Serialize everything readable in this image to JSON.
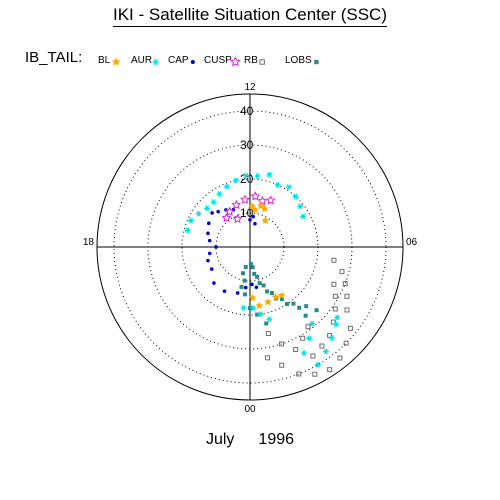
{
  "header": {
    "title": "IKI - Satellite Situation Center (SSC)",
    "legend_label": "IB_TAIL:"
  },
  "footer": {
    "month": "July",
    "year": "1996"
  },
  "chart_data": {
    "type": "scatter",
    "subtype": "polar",
    "title": "IKI - Satellite Situation Center (SSC)",
    "angular_axis": {
      "unit": "MLT hours",
      "tick_labels": [
        "12",
        "18",
        "00",
        "06"
      ]
    },
    "radial_axis": {
      "ticks": [
        "10",
        "20",
        "30",
        "40"
      ],
      "range": [
        0,
        45
      ]
    },
    "legend": [
      {
        "name": "BL",
        "marker": "star",
        "color": "#ffaa00"
      },
      {
        "name": "AUR",
        "marker": "asterisk",
        "color": "#00e0e0"
      },
      {
        "name": "CAP",
        "marker": "dot",
        "color": "#0000cc"
      },
      {
        "name": "CUSP",
        "marker": "star-outline",
        "color": "#e020e0"
      },
      {
        "name": "RB",
        "marker": "square-outline",
        "color": "#707070"
      },
      {
        "name": "LOBS",
        "marker": "square",
        "color": "#2a8a8a"
      }
    ],
    "series": [
      {
        "name": "BL",
        "points": [
          [
            0.6,
            17.5
          ],
          [
            1.2,
            17
          ],
          [
            1.8,
            16.5
          ],
          [
            2.2,
            17
          ],
          [
            0.2,
            15
          ],
          [
            10.6,
            12
          ],
          [
            11.0,
            12.5
          ],
          [
            11.5,
            11
          ],
          [
            11.8,
            12
          ],
          [
            10.0,
            9
          ]
        ]
      },
      {
        "name": "AUR",
        "points": [
          [
            8.0,
            18
          ],
          [
            8.6,
            19
          ],
          [
            9.2,
            20
          ],
          [
            9.8,
            21
          ],
          [
            10.4,
            20
          ],
          [
            11.0,
            22
          ],
          [
            11.6,
            21
          ],
          [
            12.2,
            21
          ],
          [
            12.8,
            20
          ],
          [
            13.4,
            19
          ],
          [
            14.0,
            18
          ],
          [
            14.6,
            17
          ],
          [
            15.2,
            17
          ],
          [
            15.8,
            18
          ],
          [
            16.4,
            19
          ],
          [
            17.0,
            19
          ],
          [
            2.0,
            40
          ],
          [
            2.4,
            38
          ],
          [
            2.8,
            36
          ],
          [
            3.2,
            34
          ],
          [
            3.4,
            33
          ],
          [
            1.8,
            35
          ],
          [
            2.2,
            32
          ],
          [
            2.6,
            29
          ],
          [
            0.6,
            20
          ],
          [
            1.0,
            22
          ],
          [
            0.2,
            18
          ],
          [
            23.6,
            18
          ]
        ]
      },
      {
        "name": "CAP",
        "points": [
          [
            13.6,
            12
          ],
          [
            14.2,
            13
          ],
          [
            14.8,
            14
          ],
          [
            15.2,
            15
          ],
          [
            16.0,
            14
          ],
          [
            16.8,
            13
          ],
          [
            17.4,
            12
          ],
          [
            18.0,
            10
          ],
          [
            18.6,
            12
          ],
          [
            19.2,
            13
          ],
          [
            20.0,
            13
          ],
          [
            21.0,
            15
          ],
          [
            22.0,
            15
          ],
          [
            23.0,
            14
          ],
          [
            23.6,
            12
          ],
          [
            0.2,
            11
          ],
          [
            0.6,
            12
          ],
          [
            11.6,
            9
          ],
          [
            12.0,
            8
          ],
          [
            11.2,
            7
          ]
        ]
      },
      {
        "name": "CUSP",
        "points": [
          [
            10.4,
            15
          ],
          [
            11.0,
            14
          ],
          [
            11.6,
            15
          ],
          [
            12.4,
            14
          ],
          [
            13.2,
            13
          ],
          [
            14.0,
            12
          ],
          [
            14.6,
            11
          ],
          [
            13.6,
            9
          ]
        ]
      },
      {
        "name": "RB",
        "points": [
          [
            1.4,
            40
          ],
          [
            1.8,
            42
          ],
          [
            2.2,
            43
          ],
          [
            2.6,
            42
          ],
          [
            3.0,
            40
          ],
          [
            3.4,
            38
          ],
          [
            2.0,
            37
          ],
          [
            2.4,
            36
          ],
          [
            2.8,
            35
          ],
          [
            3.2,
            33
          ],
          [
            3.6,
            31
          ],
          [
            4.0,
            29
          ],
          [
            4.4,
            27
          ],
          [
            1.6,
            33
          ],
          [
            2.0,
            31
          ],
          [
            2.4,
            29
          ],
          [
            1.2,
            30
          ],
          [
            0.8,
            26
          ],
          [
            3.8,
            34
          ],
          [
            4.2,
            32
          ],
          [
            4.6,
            30
          ],
          [
            5.0,
            28
          ],
          [
            5.4,
            25
          ],
          [
            1.0,
            36
          ],
          [
            0.6,
            33
          ]
        ]
      },
      {
        "name": "LOBS",
        "points": [
          [
            0.2,
            5
          ],
          [
            0.6,
            8
          ],
          [
            1.0,
            11
          ],
          [
            1.4,
            14
          ],
          [
            1.8,
            17
          ],
          [
            2.2,
            20
          ],
          [
            2.6,
            23
          ],
          [
            2.6,
            26
          ],
          [
            0.5,
            6
          ],
          [
            0.9,
            9
          ],
          [
            1.3,
            12
          ],
          [
            1.7,
            15
          ],
          [
            2.1,
            18
          ],
          [
            2.5,
            21
          ],
          [
            2.9,
            24
          ],
          [
            3.1,
            27
          ],
          [
            23.2,
            6
          ],
          [
            23.4,
            10
          ],
          [
            23.6,
            14
          ],
          [
            0.0,
            18
          ],
          [
            0.4,
            20
          ],
          [
            0.8,
            23
          ],
          [
            23.0,
            8
          ],
          [
            23.2,
            12
          ]
        ]
      }
    ]
  }
}
